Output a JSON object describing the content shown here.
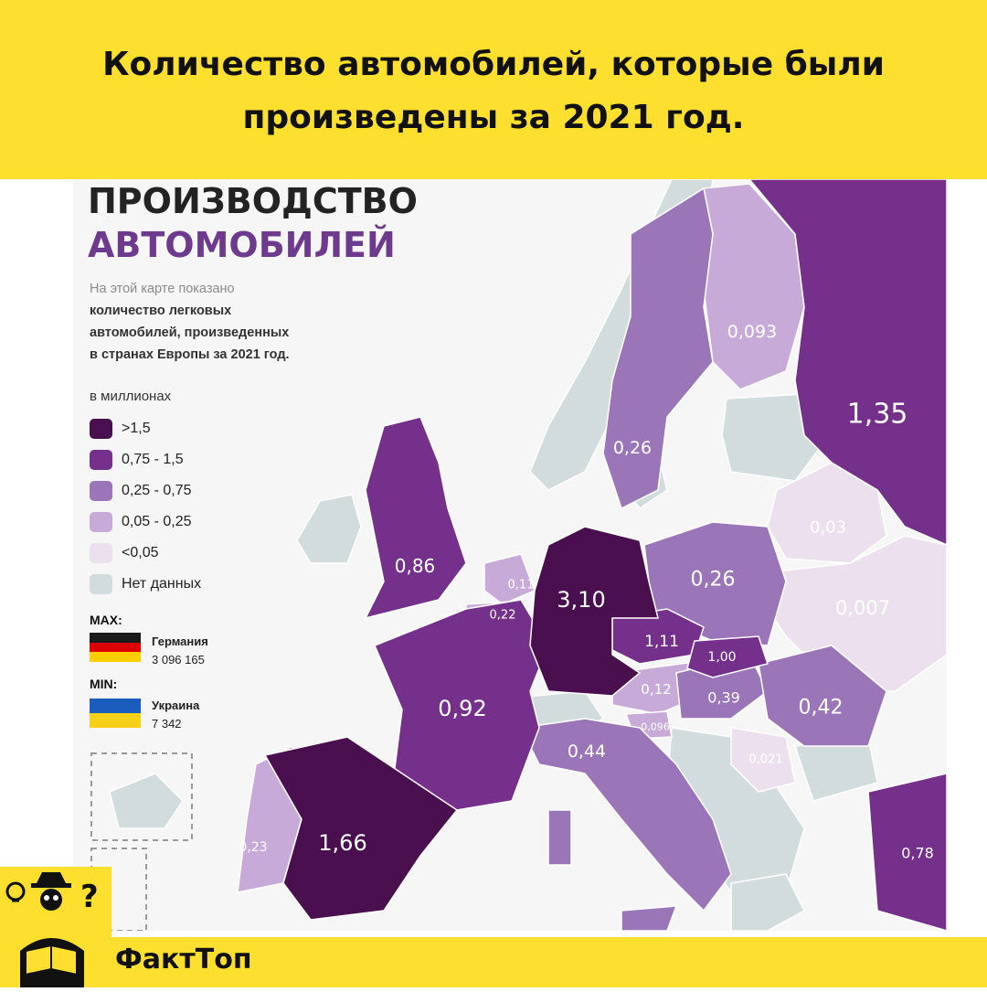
{
  "header": {
    "title_line1": "Количество автомобилей, которые были",
    "title_line2": "произведены за 2021 год."
  },
  "map": {
    "heading_line1": "ПРОИЗВОДСТВО",
    "heading_line2": "АВТОМОБИЛЕЙ",
    "description_line1": "На этой карте показано",
    "description_line2": "количество легковых",
    "description_line3": "автомобилей, произведенных",
    "description_line4": "в странах Европы за 2021 год.",
    "units": "в миллионах",
    "legend": [
      {
        "label": ">1,5",
        "color": "#4a0f4f"
      },
      {
        "label": "0,75 - 1,5",
        "color": "#74308a"
      },
      {
        "label": "0,25 - 0,75",
        "color": "#9a75b8"
      },
      {
        "label": "0,05 - 0,25",
        "color": "#c8aad8"
      },
      {
        "label": "<0,05",
        "color": "#ede0ee"
      },
      {
        "label": "Нет данных",
        "color": "#d2dcdc"
      }
    ],
    "max": {
      "label": "MAX:",
      "country": "Германия",
      "value": "3 096 165",
      "flag_colors": [
        "#1b1b1b",
        "#dd0000",
        "#ffce00"
      ]
    },
    "min": {
      "label": "MIN:",
      "country": "Украина",
      "value": "7 342",
      "flag_colors": [
        "#1a5dbd",
        "#f7d117"
      ]
    },
    "values": {
      "russia": "1,35",
      "finland": "0,093",
      "sweden": "0,26",
      "uk": "0,86",
      "germany": "3,10",
      "poland": "0,26",
      "belarus": "0,03",
      "ukraine": "0,007",
      "netherlands": "0,11",
      "belgium": "0,22",
      "czechia": "1,11",
      "slovakia": "1,00",
      "austria": "0,12",
      "hungary": "0,39",
      "romania": "0,42",
      "slovenia": "0,096",
      "serbia": "0,021",
      "france": "0,92",
      "italy": "0,44",
      "spain": "1,66",
      "portugal": "0,23",
      "turkey": "0,78"
    },
    "colors": {
      "no_data": "#d2dcdc",
      "sea": "#f6f6f6"
    }
  },
  "footer": {
    "brand": "ФактТоп",
    "brand_color": "#fde02f"
  }
}
